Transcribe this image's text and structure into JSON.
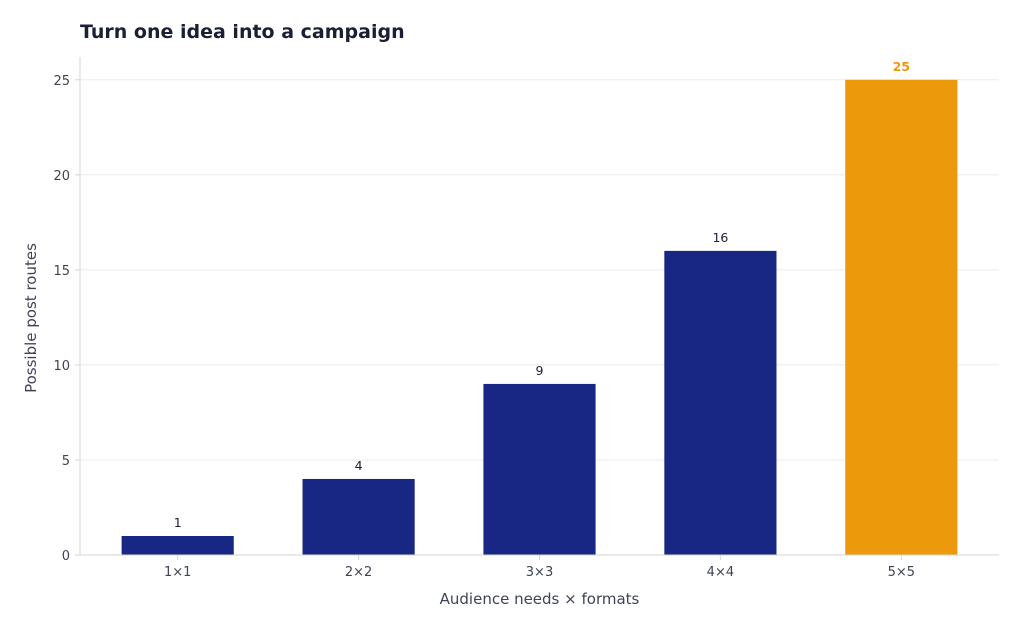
{
  "chart_data": {
    "type": "bar",
    "title": "Turn one idea into a campaign",
    "xlabel": "Audience needs × formats",
    "ylabel": "Possible post routes",
    "categories": [
      "1×1",
      "2×2",
      "3×3",
      "4×4",
      "5×5"
    ],
    "values": [
      1,
      4,
      9,
      16,
      25
    ],
    "data_labels": [
      "1",
      "4",
      "9",
      "16",
      "25"
    ],
    "yticks": [
      0,
      5,
      10,
      15,
      20,
      25
    ],
    "ytick_labels": [
      "0",
      "5",
      "10",
      "15",
      "20",
      "25"
    ],
    "ylim": [
      0,
      26.2
    ],
    "grid": "horizontal",
    "legend": "none",
    "highlight_index": 4,
    "colors": {
      "bar": "#172783",
      "highlight": "#ec9a0c",
      "grid": "#ebebeb",
      "axis": "#d6d6d6",
      "text": "#1a1f33"
    }
  }
}
